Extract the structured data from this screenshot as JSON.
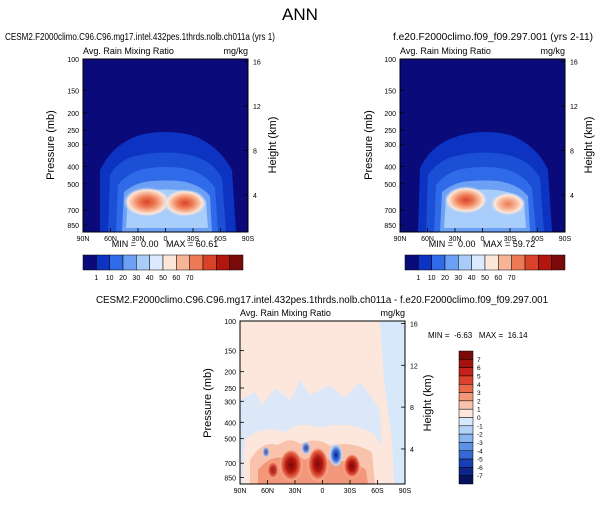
{
  "figure_title": "ANN",
  "chart_data": [
    {
      "type": "heatmap",
      "title": "CESM2.F2000climo.C96.C96.mg17.intel.432pes.1thrds.nolb.ch011a (yrs 1)",
      "left_label": "Avg. Rain Mixing Ratio",
      "units": "mg/kg",
      "ylabel": "Pressure (mb)",
      "y2label": "Height (km)",
      "x_ticks": [
        "90N",
        "60N",
        "30N",
        "0",
        "30S",
        "60S",
        "90S"
      ],
      "y_ticks": [
        "100",
        "150",
        "200",
        "250",
        "300",
        "400",
        "500",
        "700",
        "850"
      ],
      "y2_ticks": [
        "16",
        "12",
        "8",
        "4"
      ],
      "stats": "MIN =  0.00   MAX = 60.61",
      "min": 0.0,
      "max": 60.61,
      "colorbar_labels": [
        "1",
        "10",
        "20",
        "30",
        "40",
        "50",
        "60",
        "70"
      ],
      "colorbar_colors": [
        "#0a0a7a",
        "#0d33c2",
        "#2f6be8",
        "#6ba0f5",
        "#a9cdfb",
        "#dbeaff",
        "#fde7d9",
        "#f7b596",
        "#ee7a55",
        "#d94228",
        "#b3160f",
        "#7a0a0a"
      ]
    },
    {
      "type": "heatmap",
      "title": "f.e20.F2000climo.f09_f09.297.001 (yrs 2-11)",
      "left_label": "Avg. Rain Mixing Ratio",
      "units": "mg/kg",
      "ylabel": "Pressure (mb)",
      "y2label": "Height (km)",
      "x_ticks": [
        "90N",
        "60N",
        "30N",
        "0",
        "30S",
        "60S",
        "90S"
      ],
      "y_ticks": [
        "100",
        "150",
        "200",
        "250",
        "300",
        "400",
        "500",
        "700",
        "850"
      ],
      "y2_ticks": [
        "16",
        "12",
        "8",
        "4"
      ],
      "stats": "MIN =  0.00   MAX = 59.72",
      "min": 0.0,
      "max": 59.72,
      "colorbar_labels": [
        "1",
        "10",
        "20",
        "30",
        "40",
        "50",
        "60",
        "70"
      ],
      "colorbar_colors": [
        "#0a0a7a",
        "#0d33c2",
        "#2f6be8",
        "#6ba0f5",
        "#a9cdfb",
        "#dbeaff",
        "#fde7d9",
        "#f7b596",
        "#ee7a55",
        "#d94228",
        "#b3160f",
        "#7a0a0a"
      ]
    },
    {
      "type": "heatmap",
      "title": "CESM2.F2000climo.C96.C96.mg17.intel.432pes.1thrds.nolb.ch011a - f.e20.F2000climo.f09_f09.297.001",
      "left_label": "Avg. Rain Mixing Ratio",
      "units": "mg/kg",
      "ylabel": "Pressure (mb)",
      "y2label": "Height (km)",
      "x_ticks": [
        "90N",
        "60N",
        "30N",
        "0",
        "30S",
        "60S",
        "90S"
      ],
      "y_ticks": [
        "100",
        "150",
        "200",
        "250",
        "300",
        "400",
        "500",
        "700",
        "850"
      ],
      "y2_ticks": [
        "16",
        "12",
        "8",
        "4"
      ],
      "stats": "MIN =  -6.63   MAX =  16.14",
      "min": -6.63,
      "max": 16.14,
      "colorbar_labels": [
        "7",
        "6",
        "5",
        "4",
        "3",
        "2",
        "1",
        "0",
        "-1",
        "-2",
        "-3",
        "-4",
        "-5",
        "-6",
        "-7"
      ],
      "colorbar_colors": [
        "#7a0a0a",
        "#a3120e",
        "#c4221a",
        "#d9432c",
        "#e86a4b",
        "#f3977a",
        "#f9c2ab",
        "#fde7dc",
        "#d8e8fb",
        "#b4d2f7",
        "#8ab5f0",
        "#5d93e6",
        "#3569d6",
        "#1a3fb5",
        "#0d2488",
        "#06135c"
      ]
    }
  ]
}
